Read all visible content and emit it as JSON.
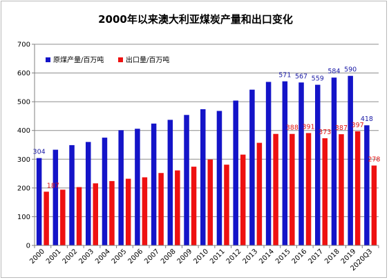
{
  "chart_data": {
    "type": "bar",
    "title": "2000年以来澳大利亚煤炭产量和出口变化",
    "categories": [
      "2000",
      "2001",
      "2002",
      "2003",
      "2004",
      "2005",
      "2006",
      "2007",
      "2008",
      "2009",
      "2010",
      "2011",
      "2012",
      "2013",
      "2014",
      "2015",
      "2016",
      "2017",
      "2018",
      "2019",
      "2020Q3"
    ],
    "ylim": [
      0,
      700
    ],
    "yticks": [
      0,
      100,
      200,
      300,
      400,
      500,
      600,
      700
    ],
    "grid": true,
    "legend_position": "top-left",
    "series": [
      {
        "name": "原煤产量/百万吨",
        "color": "#1414c8",
        "label_color": "#1a1aa6",
        "values": [
          304,
          333,
          349,
          360,
          375,
          401,
          406,
          424,
          437,
          454,
          474,
          468,
          504,
          542,
          569,
          571,
          567,
          559,
          584,
          590,
          418
        ],
        "data_labels": {
          "0": "304",
          "15": "571",
          "16": "567",
          "17": "559",
          "18": "584",
          "19": "590",
          "20": "418"
        }
      },
      {
        "name": "出口量/百万吨",
        "color": "#ee1111",
        "label_color": "#e01414",
        "values": [
          187,
          194,
          203,
          216,
          224,
          232,
          237,
          252,
          261,
          274,
          299,
          281,
          316,
          357,
          388,
          388,
          391,
          373,
          387,
          397,
          278
        ],
        "data_labels": {
          "0": "187",
          "15": "388",
          "16": "391",
          "17": "373",
          "18": "387",
          "19": "397",
          "20": "278"
        }
      }
    ]
  }
}
